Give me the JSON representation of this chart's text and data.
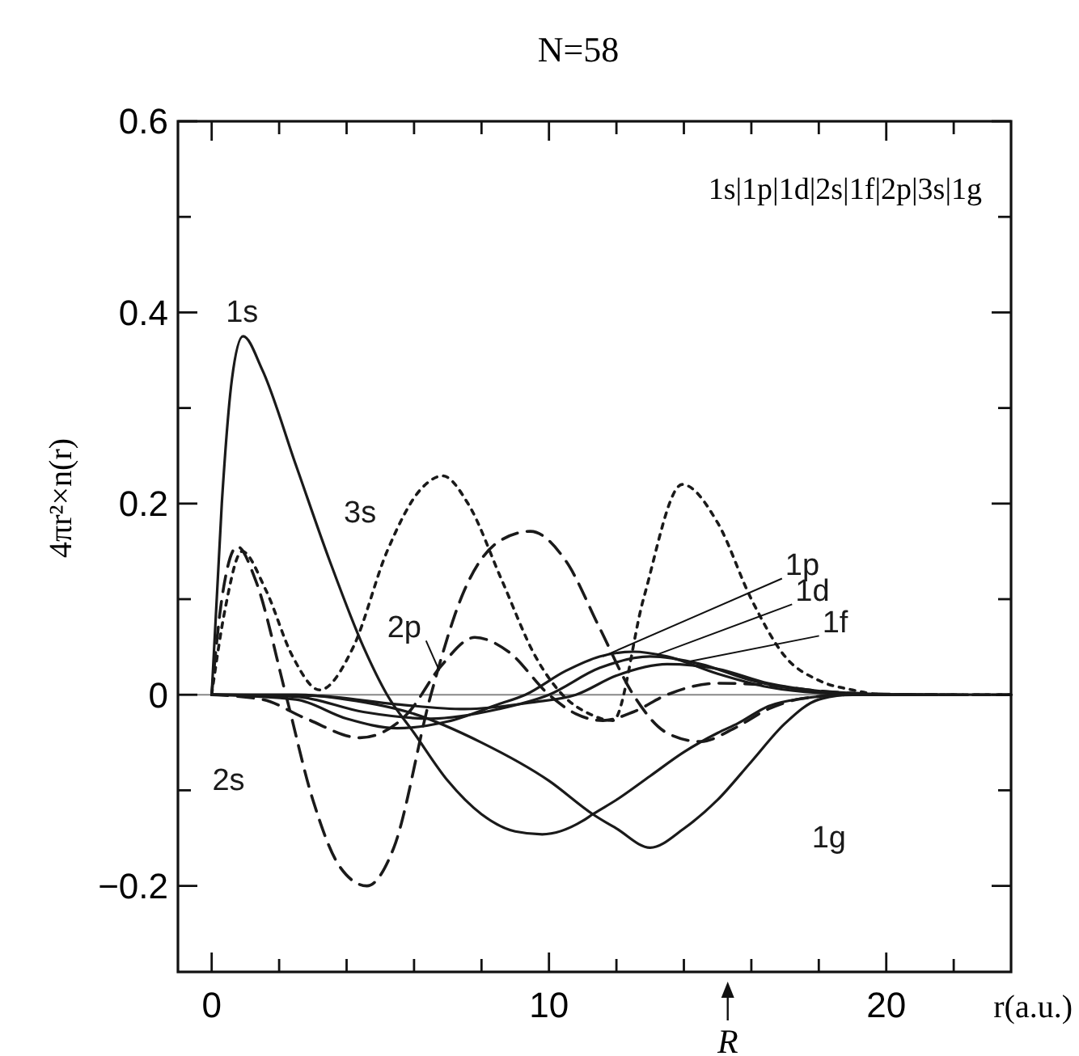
{
  "chart_data": {
    "type": "line",
    "title": "N=58",
    "xlabel": "r(a.u.)",
    "ylabel": "4πr²×n(r)",
    "xlim": [
      -1,
      23.7
    ],
    "ylim": [
      -0.29,
      0.6
    ],
    "xticks": [
      0,
      {
        "value": 2,
        "label": null
      },
      {
        "value": 4,
        "label": null
      },
      {
        "value": 6,
        "label": null
      },
      {
        "value": 8,
        "label": null
      },
      10,
      {
        "value": 12,
        "label": null
      },
      {
        "value": 14,
        "label": null
      },
      {
        "value": 16,
        "label": null
      },
      {
        "value": 18,
        "label": null
      },
      20,
      {
        "value": 22,
        "label": null
      }
    ],
    "yticks": [
      {
        "value": -0.2,
        "label": "−0.2"
      },
      {
        "value": -0.1,
        "label": null
      },
      0,
      {
        "value": 0.1,
        "label": null
      },
      0.2,
      {
        "value": 0.3,
        "label": null
      },
      0.4,
      {
        "value": 0.5,
        "label": null
      },
      0.6
    ],
    "grid": false,
    "marker": "none",
    "ref_lines": [
      {
        "axis": "y",
        "value": 0,
        "color": "#888888"
      }
    ],
    "annotations": [
      "1s|1p|1d|2s|1f|2p|3s|1g",
      "R"
    ],
    "series": [
      {
        "name": "1s",
        "color": "#1a1a1a",
        "line_style": "solid",
        "x": [
          0,
          0.3,
          0.6,
          0.93,
          1.5,
          2.5,
          3.5,
          4.5,
          5.2,
          6,
          7,
          8,
          9,
          9.8,
          11,
          11.3,
          12,
          13,
          14,
          15,
          15.6,
          16.5,
          17.5,
          19,
          21,
          23.7
        ],
        "values": [
          0,
          0.2,
          0.33,
          0.375,
          0.34,
          0.24,
          0.14,
          0.05,
          0,
          -0.04,
          -0.09,
          -0.125,
          -0.143,
          -0.146,
          -0.132,
          -0.125,
          -0.11,
          -0.085,
          -0.06,
          -0.04,
          -0.03,
          -0.012,
          -0.004,
          0,
          0,
          0
        ]
      },
      {
        "name": "1p",
        "color": "#1a1a1a",
        "line_style": "solid",
        "x": [
          0,
          2.5,
          4,
          5.5,
          7,
          8.5,
          9.3,
          10.5,
          11.5,
          12.5,
          13.5,
          15,
          16.5,
          18,
          20
        ],
        "values": [
          0,
          -0.005,
          -0.025,
          -0.035,
          -0.028,
          -0.01,
          0,
          0.025,
          0.04,
          0.045,
          0.04,
          0.022,
          0.008,
          0.002,
          0
        ]
      },
      {
        "name": "1d",
        "color": "#1a1a1a",
        "line_style": "solid",
        "x": [
          0,
          2.5,
          4.5,
          6.5,
          8.5,
          10,
          11.5,
          13,
          14.5,
          16,
          17.5,
          19,
          20.5
        ],
        "values": [
          0,
          -0.002,
          -0.018,
          -0.025,
          -0.015,
          0,
          0.028,
          0.04,
          0.032,
          0.015,
          0.005,
          0.001,
          0
        ]
      },
      {
        "name": "2s",
        "color": "#1a1a1a",
        "line_style": "dashed",
        "x": [
          0,
          0.3,
          0.76,
          1.3,
          2.2,
          3,
          3.8,
          4.6,
          5.4,
          6.5,
          7.5,
          8.5,
          9.45,
          10.5,
          11.5,
          12.5,
          13.5,
          14.5,
          15.5,
          16.5,
          17.5,
          19,
          21,
          23.7
        ],
        "values": [
          0,
          0.1,
          0.155,
          0.12,
          0,
          -0.11,
          -0.18,
          -0.2,
          -0.16,
          0,
          0.11,
          0.16,
          0.171,
          0.14,
          0.07,
          0,
          -0.04,
          -0.049,
          -0.035,
          -0.015,
          -0.004,
          0,
          0,
          0
        ]
      },
      {
        "name": "1f",
        "color": "#1a1a1a",
        "line_style": "solid",
        "x": [
          0,
          3,
          5.5,
          7.5,
          9.5,
          10.8,
          12,
          13.5,
          15,
          16.5,
          18,
          19.5,
          21
        ],
        "values": [
          0,
          -0.001,
          -0.01,
          -0.015,
          -0.008,
          0,
          0.02,
          0.032,
          0.027,
          0.012,
          0.004,
          0.001,
          0
        ]
      },
      {
        "name": "2p",
        "color": "#1a1a1a",
        "line_style": "dashed",
        "x": [
          0,
          1.5,
          2.8,
          4.4,
          5.8,
          6.8,
          7.8,
          8.8,
          10,
          10.8,
          11.6,
          12.5,
          13.5,
          15,
          16.5,
          18,
          19.5,
          21.5
        ],
        "values": [
          0,
          -0.005,
          -0.025,
          -0.045,
          -0.02,
          0.03,
          0.06,
          0.045,
          0,
          -0.02,
          -0.027,
          -0.018,
          0,
          0.012,
          0.01,
          0.004,
          0.001,
          0
        ]
      },
      {
        "name": "3s",
        "color": "#1a1a1a",
        "line_style": "dotted",
        "x": [
          0,
          0.4,
          0.9,
          1.6,
          2.4,
          3.2,
          4.2,
          5.2,
          6.2,
          6.85,
          7.6,
          8.6,
          9.6,
          10.4,
          11.2,
          11.9,
          12.8,
          13.95,
          15,
          16,
          17,
          18,
          19,
          20,
          21,
          23.7
        ],
        "values": [
          0,
          0.09,
          0.15,
          0.11,
          0.04,
          0.005,
          0.05,
          0.15,
          0.215,
          0.229,
          0.2,
          0.12,
          0.04,
          0,
          -0.02,
          -0.027,
          0.1,
          0.22,
          0.18,
          0.1,
          0.04,
          0.015,
          0.005,
          0,
          0,
          0
        ]
      },
      {
        "name": "1g",
        "color": "#1a1a1a",
        "line_style": "solid",
        "x": [
          0,
          2.5,
          4,
          6,
          8,
          10,
          11.3,
          12,
          13,
          14,
          15,
          16,
          17,
          18,
          19,
          22
        ],
        "values": [
          0,
          0,
          -0.005,
          -0.02,
          -0.05,
          -0.09,
          -0.125,
          -0.14,
          -0.16,
          -0.14,
          -0.11,
          -0.07,
          -0.03,
          -0.005,
          0,
          0
        ]
      }
    ]
  }
}
